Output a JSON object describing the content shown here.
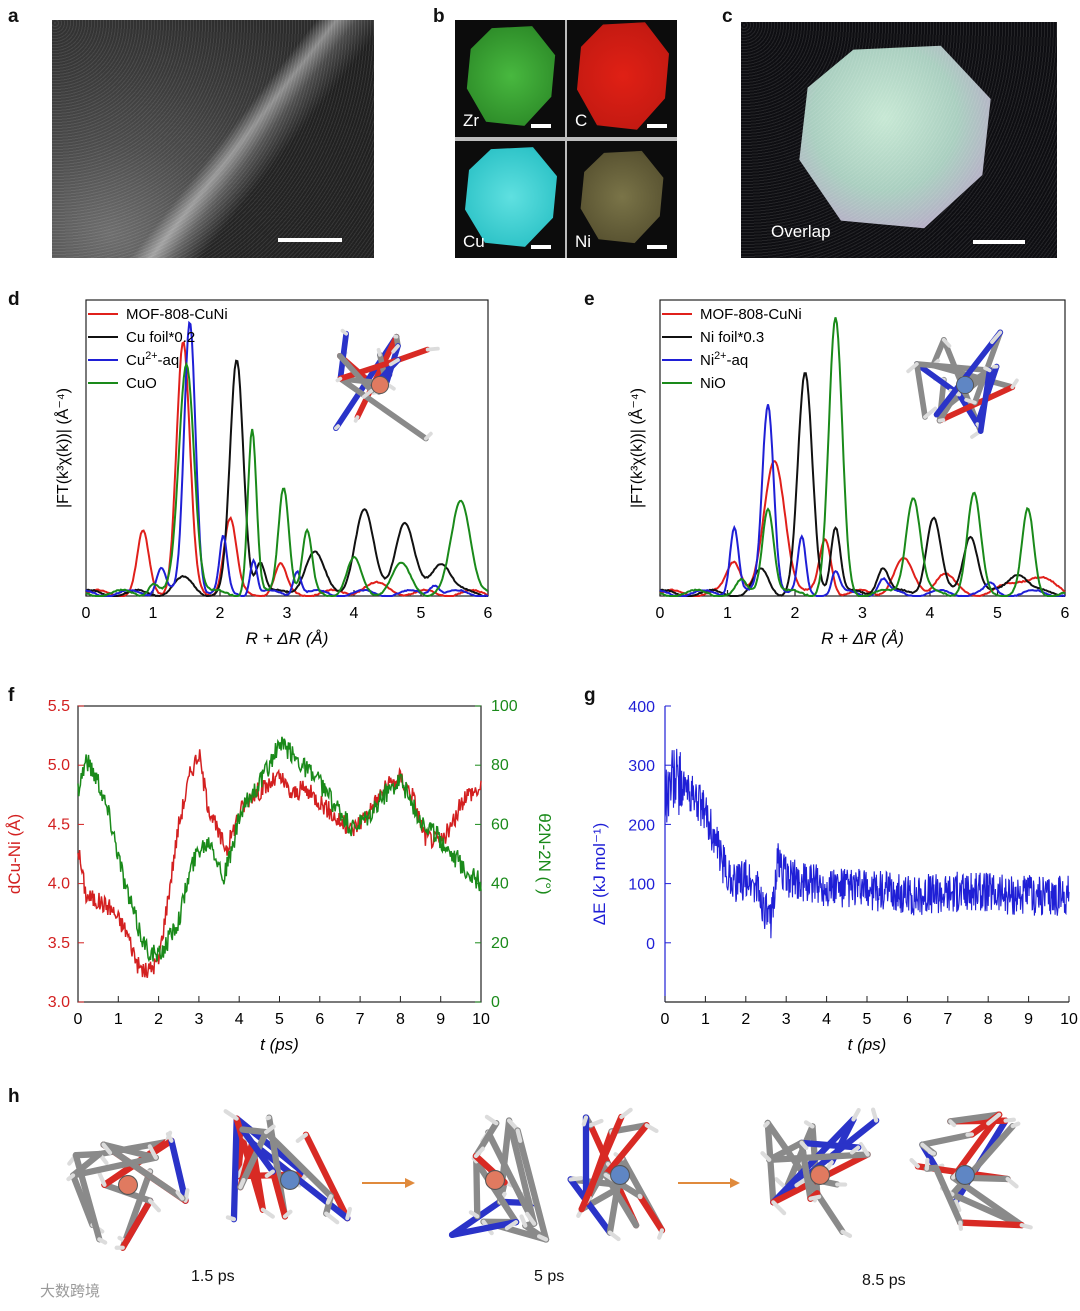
{
  "panels": {
    "a": "a",
    "b": "b",
    "c": "c",
    "d": "d",
    "e": "e",
    "f": "f",
    "g": "g",
    "h": "h"
  },
  "maps": {
    "zr": "Zr",
    "c": "C",
    "cu": "Cu",
    "ni": "Ni",
    "overlap": "Overlap"
  },
  "colors": {
    "red": "#e0201b",
    "black": "#111111",
    "blue": "#1f1fd6",
    "green": "#1a8a1a",
    "axis_f_left": "#d32020",
    "axis_f_right": "#1a8a1a",
    "axis_g": "#1f1fd6"
  },
  "chart_data": [
    {
      "id": "d",
      "type": "line",
      "ylabel": "|FT(k³χ(k))| (Å⁻⁴)",
      "xlabel": "R + ΔR (Å)",
      "xlim": [
        0,
        6
      ],
      "xticks": [
        "0",
        "1",
        "2",
        "3",
        "4",
        "5",
        "6"
      ],
      "legend": [
        {
          "label": "MOF-808-CuNi",
          "color": "#e0201b"
        },
        {
          "label": "Cu foil*0.2",
          "color": "#111111"
        },
        {
          "label": "Cu2+-aq",
          "color": "#1f1fd6"
        },
        {
          "label": "CuO",
          "color": "#1a8a1a"
        }
      ],
      "series": [
        {
          "name": "MOF-808-CuNi",
          "peaks": [
            [
              0.85,
              0.22,
              0.12
            ],
            [
              1.45,
              0.92,
              0.14
            ],
            [
              2.15,
              0.27,
              0.13
            ],
            [
              2.9,
              0.1,
              0.12
            ],
            [
              4.3,
              0.03,
              0.3
            ]
          ]
        },
        {
          "name": "Cu foil*0.2",
          "peaks": [
            [
              1.45,
              0.05,
              0.2
            ],
            [
              2.25,
              0.85,
              0.14
            ],
            [
              2.6,
              0.12,
              0.1
            ],
            [
              3.4,
              0.15,
              0.2
            ],
            [
              4.15,
              0.3,
              0.2
            ],
            [
              4.75,
              0.26,
              0.2
            ],
            [
              5.3,
              0.12,
              0.2
            ]
          ]
        },
        {
          "name": "Cu2+-aq",
          "peaks": [
            [
              1.12,
              0.1,
              0.1
            ],
            [
              1.55,
              1.0,
              0.12
            ],
            [
              2.05,
              0.2,
              0.08
            ],
            [
              2.5,
              0.13,
              0.07
            ],
            [
              3.15,
              0.09,
              0.08
            ],
            [
              5.2,
              0.04,
              0.1
            ]
          ]
        },
        {
          "name": "CuO",
          "peaks": [
            [
              1.0,
              0.04,
              0.1
            ],
            [
              1.5,
              0.85,
              0.16
            ],
            [
              2.48,
              0.6,
              0.09
            ],
            [
              2.95,
              0.4,
              0.11
            ],
            [
              3.3,
              0.22,
              0.1
            ],
            [
              4.0,
              0.12,
              0.15
            ],
            [
              4.7,
              0.1,
              0.2
            ],
            [
              5.6,
              0.34,
              0.2
            ]
          ]
        }
      ]
    },
    {
      "id": "e",
      "type": "line",
      "ylabel": "|FT(k³χ(k))| (Å⁻⁴)",
      "xlabel": "R + ΔR (Å)",
      "xlim": [
        0,
        6
      ],
      "xticks": [
        "0",
        "1",
        "2",
        "3",
        "4",
        "5",
        "6"
      ],
      "legend": [
        {
          "label": "MOF-808-CuNi",
          "color": "#e0201b"
        },
        {
          "label": "Ni foil*0.3",
          "color": "#111111"
        },
        {
          "label": "Ni2+-aq",
          "color": "#1f1fd6"
        },
        {
          "label": "NiO",
          "color": "#1a8a1a"
        }
      ],
      "series": [
        {
          "name": "MOF-808-CuNi",
          "peaks": [
            [
              1.1,
              0.12,
              0.15
            ],
            [
              1.7,
              0.48,
              0.22
            ],
            [
              2.45,
              0.2,
              0.12
            ],
            [
              3.6,
              0.12,
              0.2
            ],
            [
              4.2,
              0.07,
              0.2
            ],
            [
              5.5,
              0.06,
              0.4
            ]
          ]
        },
        {
          "name": "Ni foil*0.3",
          "peaks": [
            [
              1.5,
              0.08,
              0.15
            ],
            [
              2.15,
              0.8,
              0.15
            ],
            [
              2.6,
              0.25,
              0.1
            ],
            [
              3.3,
              0.1,
              0.12
            ],
            [
              4.05,
              0.28,
              0.15
            ],
            [
              4.6,
              0.22,
              0.15
            ],
            [
              5.3,
              0.08,
              0.2
            ]
          ]
        },
        {
          "name": "Ni2+-aq",
          "peaks": [
            [
              1.1,
              0.25,
              0.09
            ],
            [
              1.6,
              0.7,
              0.12
            ],
            [
              2.1,
              0.2,
              0.08
            ],
            [
              2.6,
              0.08,
              0.08
            ],
            [
              3.3,
              0.05,
              0.1
            ],
            [
              4.9,
              0.03,
              0.1
            ]
          ]
        },
        {
          "name": "NiO",
          "peaks": [
            [
              1.2,
              0.04,
              0.1
            ],
            [
              1.6,
              0.32,
              0.12
            ],
            [
              2.6,
              1.0,
              0.14
            ],
            [
              3.75,
              0.36,
              0.15
            ],
            [
              4.65,
              0.36,
              0.14
            ],
            [
              5.45,
              0.3,
              0.12
            ]
          ]
        }
      ]
    },
    {
      "id": "f",
      "type": "line",
      "xlabel": "t (ps)",
      "ylabel_left": "dCu-Ni (Å)",
      "ylabel_right": "θ2N-2N (°)",
      "xlim": [
        0,
        10
      ],
      "ylim_left": [
        3.0,
        5.5
      ],
      "ylim_right": [
        0,
        100
      ],
      "xticks": [
        "0",
        "1",
        "2",
        "3",
        "4",
        "5",
        "6",
        "7",
        "8",
        "9",
        "10"
      ],
      "yticks_left": [
        "3.0",
        "3.5",
        "4.0",
        "4.5",
        "5.0",
        "5.5"
      ],
      "yticks_right": [
        "0",
        "20",
        "40",
        "60",
        "80",
        "100"
      ],
      "series": [
        {
          "name": "dCu-Ni",
          "axis": "left",
          "x": [
            0,
            0.2,
            0.5,
            0.8,
            1.0,
            1.2,
            1.5,
            1.7,
            2.0,
            2.2,
            2.5,
            2.8,
            3.0,
            3.2,
            3.5,
            3.7,
            4.0,
            4.3,
            4.6,
            5.0,
            5.3,
            5.6,
            6.0,
            6.4,
            6.8,
            7.2,
            7.6,
            8.0,
            8.3,
            8.6,
            9.0,
            9.3,
            9.6,
            10.0
          ],
          "y": [
            4.3,
            3.9,
            3.85,
            3.8,
            3.7,
            3.6,
            3.3,
            3.25,
            3.35,
            3.8,
            4.5,
            4.95,
            5.1,
            4.7,
            4.4,
            4.3,
            4.6,
            4.75,
            4.8,
            4.9,
            4.75,
            4.8,
            4.7,
            4.55,
            4.45,
            4.6,
            4.8,
            4.9,
            4.75,
            4.4,
            4.35,
            4.5,
            4.75,
            4.8
          ]
        },
        {
          "name": "θ2N-2N",
          "axis": "right",
          "x": [
            0,
            0.2,
            0.5,
            0.8,
            1.0,
            1.2,
            1.5,
            1.7,
            2.0,
            2.2,
            2.5,
            2.8,
            3.0,
            3.3,
            3.6,
            3.8,
            4.0,
            4.3,
            4.6,
            5.0,
            5.3,
            5.6,
            6.0,
            6.4,
            6.8,
            7.2,
            7.6,
            8.0,
            8.3,
            8.6,
            9.0,
            9.3,
            9.6,
            10.0
          ],
          "y": [
            72,
            82,
            75,
            62,
            50,
            38,
            25,
            18,
            15,
            20,
            28,
            45,
            52,
            55,
            42,
            50,
            62,
            70,
            76,
            87,
            84,
            80,
            74,
            66,
            58,
            62,
            70,
            76,
            66,
            60,
            55,
            50,
            45,
            40
          ]
        }
      ]
    },
    {
      "id": "g",
      "type": "line",
      "xlabel": "t (ps)",
      "ylabel": "ΔE (kJ mol⁻¹)",
      "xlim": [
        0,
        10
      ],
      "ylim": [
        -100,
        400
      ],
      "xticks": [
        "0",
        "1",
        "2",
        "3",
        "4",
        "5",
        "6",
        "7",
        "8",
        "9",
        "10"
      ],
      "yticks": [
        "0",
        "100",
        "200",
        "300",
        "400"
      ],
      "series": [
        {
          "name": "ΔE",
          "x": [
            0,
            0.2,
            0.5,
            0.8,
            1.0,
            1.2,
            1.5,
            1.8,
            2.0,
            2.3,
            2.6,
            2.8,
            3.0,
            3.5,
            4.0,
            5.0,
            6.0,
            7.0,
            8.0,
            9.0,
            10.0
          ],
          "y": [
            250,
            280,
            260,
            240,
            220,
            180,
            120,
            100,
            110,
            90,
            30,
            140,
            110,
            100,
            95,
            90,
            80,
            85,
            85,
            80,
            80
          ]
        }
      ]
    }
  ],
  "snapshots": [
    "1.5 ps",
    "5 ps",
    "8.5 ps"
  ],
  "watermark": "大数跨境"
}
